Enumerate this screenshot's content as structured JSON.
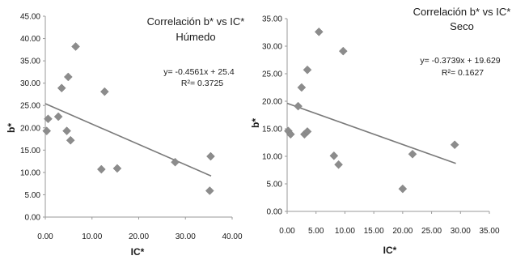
{
  "chart_data": [
    {
      "type": "scatter",
      "title": "Correlación b* vs IC*",
      "subtitle": "Húmedo",
      "xlabel": "IC*",
      "ylabel": "b*",
      "xlim": [
        0,
        40
      ],
      "ylim": [
        0,
        45
      ],
      "x_ticks": [
        "0.00",
        "10.00",
        "20.00",
        "30.00",
        "40.00"
      ],
      "y_ticks": [
        "0.00",
        "5.00",
        "10.00",
        "15.00",
        "20.00",
        "25.00",
        "30.00",
        "35.00",
        "40.00",
        "45.00"
      ],
      "points": [
        {
          "x": 0.3,
          "y": 19.3
        },
        {
          "x": 0.6,
          "y": 22.0
        },
        {
          "x": 2.8,
          "y": 22.5
        },
        {
          "x": 3.5,
          "y": 28.9
        },
        {
          "x": 4.6,
          "y": 19.3
        },
        {
          "x": 4.9,
          "y": 31.4
        },
        {
          "x": 5.4,
          "y": 17.2
        },
        {
          "x": 6.5,
          "y": 38.2
        },
        {
          "x": 12.0,
          "y": 10.7
        },
        {
          "x": 12.7,
          "y": 28.1
        },
        {
          "x": 15.4,
          "y": 10.9
        },
        {
          "x": 27.8,
          "y": 12.3
        },
        {
          "x": 35.4,
          "y": 13.6
        },
        {
          "x": 35.2,
          "y": 5.9
        }
      ],
      "trendline": {
        "slope": -0.4561,
        "intercept": 25.4,
        "x_range": [
          0,
          35.5
        ]
      },
      "equation": "y= -0.4561x + 25.4",
      "r2": "R²= 0.3725",
      "marker_color": "#8c8c8c",
      "line_color": "#7a7a7a",
      "grid": false
    },
    {
      "type": "scatter",
      "title": "Correlación b* vs IC*",
      "subtitle": "Seco",
      "xlabel": "IC*",
      "ylabel": "b*",
      "xlim": [
        0,
        35
      ],
      "ylim": [
        0,
        35
      ],
      "x_ticks": [
        "0.00",
        "5.00",
        "10.00",
        "15.00",
        "20.00",
        "25.00",
        "30.00",
        "35.00"
      ],
      "y_ticks": [
        "0.00",
        "5.00",
        "10.00",
        "15.00",
        "20.00",
        "25.00",
        "30.00",
        "35.00"
      ],
      "points": [
        {
          "x": 0.2,
          "y": 14.6
        },
        {
          "x": 0.6,
          "y": 14.0
        },
        {
          "x": 1.9,
          "y": 19.1
        },
        {
          "x": 2.5,
          "y": 22.5
        },
        {
          "x": 3.0,
          "y": 14.0
        },
        {
          "x": 3.5,
          "y": 14.5
        },
        {
          "x": 3.5,
          "y": 25.7
        },
        {
          "x": 5.5,
          "y": 32.6
        },
        {
          "x": 8.1,
          "y": 10.1
        },
        {
          "x": 8.9,
          "y": 8.5
        },
        {
          "x": 9.7,
          "y": 29.1
        },
        {
          "x": 20.0,
          "y": 4.1
        },
        {
          "x": 21.7,
          "y": 10.4
        },
        {
          "x": 29.0,
          "y": 12.1
        }
      ],
      "trendline": {
        "slope": -0.3739,
        "intercept": 19.629,
        "x_range": [
          0,
          29.2
        ]
      },
      "equation": "y= -0.3739x + 19.629",
      "r2": "R²= 0.1627",
      "marker_color": "#8c8c8c",
      "line_color": "#7a7a7a",
      "grid": false
    }
  ]
}
